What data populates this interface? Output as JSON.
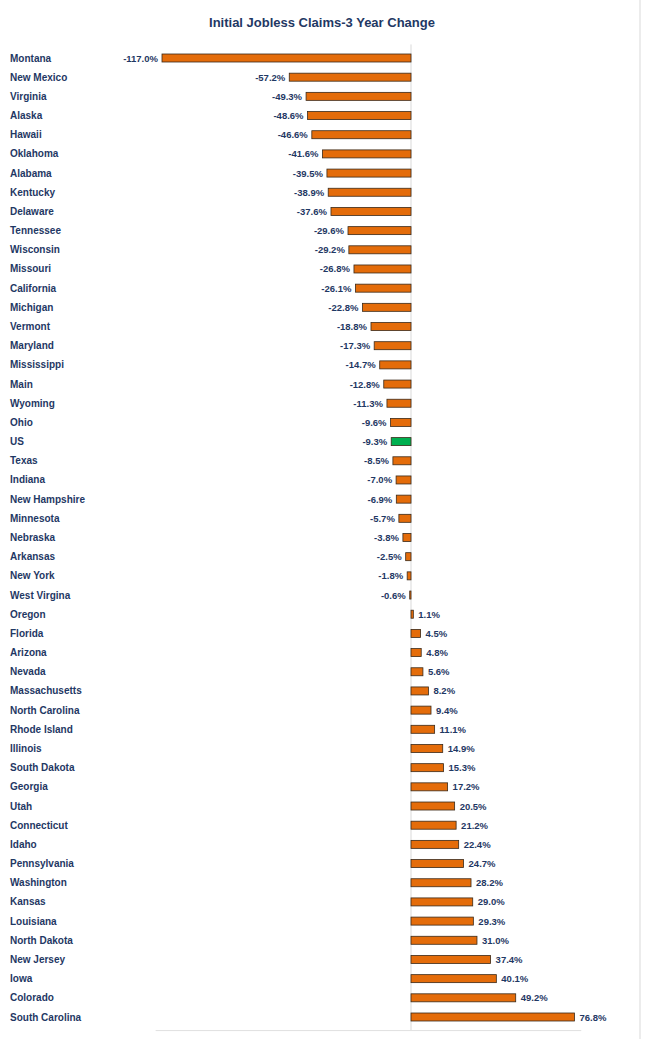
{
  "chart_data": {
    "type": "bar",
    "orientation": "horizontal",
    "title": "Initial Jobless Claims-3 Year Change",
    "categories": [
      "Montana",
      "New Mexico",
      "Virginia",
      "Alaska",
      "Hawaii",
      "Oklahoma",
      "Alabama",
      "Kentucky",
      "Delaware",
      "Tennessee",
      "Wisconsin",
      "Missouri",
      "California",
      "Michigan",
      "Vermont",
      "Maryland",
      "Mississippi",
      "Main",
      "Wyoming",
      "Ohio",
      "US",
      "Texas",
      "Indiana",
      "New Hampshire",
      "Minnesota",
      "Nebraska",
      "Arkansas",
      "New York",
      "West Virgina",
      "Oregon",
      "Florida",
      "Arizona",
      "Nevada",
      "Massachusetts",
      "North Carolina",
      "Rhode Island",
      "Illinois",
      "South Dakota",
      "Georgia",
      "Utah",
      "Connecticut",
      "Idaho",
      "Pennsylvania",
      "Washington",
      "Kansas",
      "Louisiana",
      "North Dakota",
      "New Jersey",
      "Iowa",
      "Colorado",
      "South Carolina"
    ],
    "values": [
      -117.0,
      -57.2,
      -49.3,
      -48.6,
      -46.6,
      -41.6,
      -39.5,
      -38.9,
      -37.6,
      -29.6,
      -29.2,
      -26.8,
      -26.1,
      -22.8,
      -18.8,
      -17.3,
      -14.7,
      -12.8,
      -11.3,
      -9.6,
      -9.3,
      -8.5,
      -7.0,
      -6.9,
      -5.7,
      -3.8,
      -2.5,
      -1.8,
      -0.6,
      1.1,
      4.5,
      4.8,
      5.6,
      8.2,
      9.4,
      11.1,
      14.9,
      15.3,
      17.2,
      20.5,
      21.2,
      22.4,
      24.7,
      28.2,
      29.0,
      29.3,
      31.0,
      37.4,
      40.1,
      49.2,
      76.8
    ],
    "value_labels": [
      "-117.0%",
      "-57.2%",
      "-49.3%",
      "-48.6%",
      "-46.6%",
      "-41.6%",
      "-39.5%",
      "-38.9%",
      "-37.6%",
      "-29.6%",
      "-29.2%",
      "-26.8%",
      "-26.1%",
      "-22.8%",
      "-18.8%",
      "-17.3%",
      "-14.7%",
      "-12.8%",
      "-11.3%",
      "-9.6%",
      "-9.3%",
      "-8.5%",
      "-7.0%",
      "-6.9%",
      "-5.7%",
      "-3.8%",
      "-2.5%",
      "-1.8%",
      "-0.6%",
      "1.1%",
      "4.5%",
      "4.8%",
      "5.6%",
      "8.2%",
      "9.4%",
      "11.1%",
      "14.9%",
      "15.3%",
      "17.2%",
      "20.5%",
      "21.2%",
      "22.4%",
      "24.7%",
      "28.2%",
      "29.0%",
      "29.3%",
      "31.0%",
      "37.4%",
      "40.1%",
      "49.2%",
      "76.8%"
    ],
    "colors": [
      "#e46c0a",
      "#e46c0a",
      "#e46c0a",
      "#e46c0a",
      "#e46c0a",
      "#e46c0a",
      "#e46c0a",
      "#e46c0a",
      "#e46c0a",
      "#e46c0a",
      "#e46c0a",
      "#e46c0a",
      "#e46c0a",
      "#e46c0a",
      "#e46c0a",
      "#e46c0a",
      "#e46c0a",
      "#e46c0a",
      "#e46c0a",
      "#e46c0a",
      "#00b050",
      "#e46c0a",
      "#e46c0a",
      "#e46c0a",
      "#e46c0a",
      "#e46c0a",
      "#e46c0a",
      "#e46c0a",
      "#e46c0a",
      "#e46c0a",
      "#e46c0a",
      "#e46c0a",
      "#e46c0a",
      "#e46c0a",
      "#e46c0a",
      "#e46c0a",
      "#e46c0a",
      "#e46c0a",
      "#e46c0a",
      "#e46c0a",
      "#e46c0a",
      "#e46c0a",
      "#e46c0a",
      "#e46c0a",
      "#e46c0a",
      "#e46c0a",
      "#e46c0a",
      "#e46c0a",
      "#e46c0a",
      "#e46c0a",
      "#e46c0a"
    ],
    "xlim": [
      -120,
      80
    ],
    "xticks": [
      0
    ],
    "tick_labels": "y",
    "data_labels": true,
    "grid": false
  }
}
